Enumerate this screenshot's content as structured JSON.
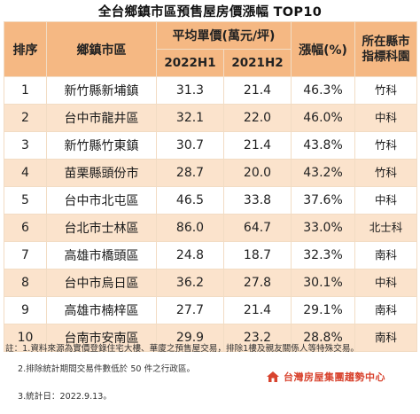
{
  "title": "全台鄉鎮市區預售屋房價漲幅 TOP10",
  "headers": {
    "rank": "排序",
    "region": "鄉鎮市區",
    "avg_price": "平均單價(萬元/坪)",
    "period_1": "2022H1",
    "period_2": "2021H2",
    "growth": "漲幅(%)",
    "science_park": "所在縣市指標科園"
  },
  "rows": [
    {
      "rank": "1",
      "region": "新竹縣新埔鎮",
      "p1": "31.3",
      "p2": "21.4",
      "growth": "46.3%",
      "park": "竹科"
    },
    {
      "rank": "2",
      "region": "台中市龍井區",
      "p1": "32.1",
      "p2": "22.0",
      "growth": "46.0%",
      "park": "中科"
    },
    {
      "rank": "3",
      "region": "新竹縣竹東鎮",
      "p1": "30.7",
      "p2": "21.4",
      "growth": "43.8%",
      "park": "竹科"
    },
    {
      "rank": "4",
      "region": "苗栗縣頭份市",
      "p1": "28.7",
      "p2": "20.0",
      "growth": "43.2%",
      "park": "竹科"
    },
    {
      "rank": "5",
      "region": "台中市北屯區",
      "p1": "46.5",
      "p2": "33.8",
      "growth": "37.6%",
      "park": "中科"
    },
    {
      "rank": "6",
      "region": "台北市士林區",
      "p1": "86.0",
      "p2": "64.7",
      "growth": "33.0%",
      "park": "北士科"
    },
    {
      "rank": "7",
      "region": "高雄市橋頭區",
      "p1": "24.8",
      "p2": "18.7",
      "growth": "32.3%",
      "park": "南科"
    },
    {
      "rank": "8",
      "region": "台中市烏日區",
      "p1": "36.2",
      "p2": "27.8",
      "growth": "30.1%",
      "park": "中科"
    },
    {
      "rank": "9",
      "region": "高雄市楠梓區",
      "p1": "27.7",
      "p2": "21.4",
      "growth": "29.1%",
      "park": "南科"
    },
    {
      "rank": "10",
      "region": "台南市安南區",
      "p1": "29.9",
      "p2": "23.2",
      "growth": "28.8%",
      "park": "南科"
    }
  ],
  "notes": {
    "n1": "註：1.資料來源為實價登錄住宅大樓、華廈之預售屋交易，排除1樓及親友關係人等特殊交易。",
    "n2": "2.排除統計期間交易件數低於 50 件之行政區。",
    "n3": "3.統計日：2022.9.13。"
  },
  "logo_text": "台灣房屋集團趨勢中心",
  "colors": {
    "header_bg": "#f5b883",
    "stripe": "#fbe3cc",
    "logo_red": "#d8432e"
  }
}
